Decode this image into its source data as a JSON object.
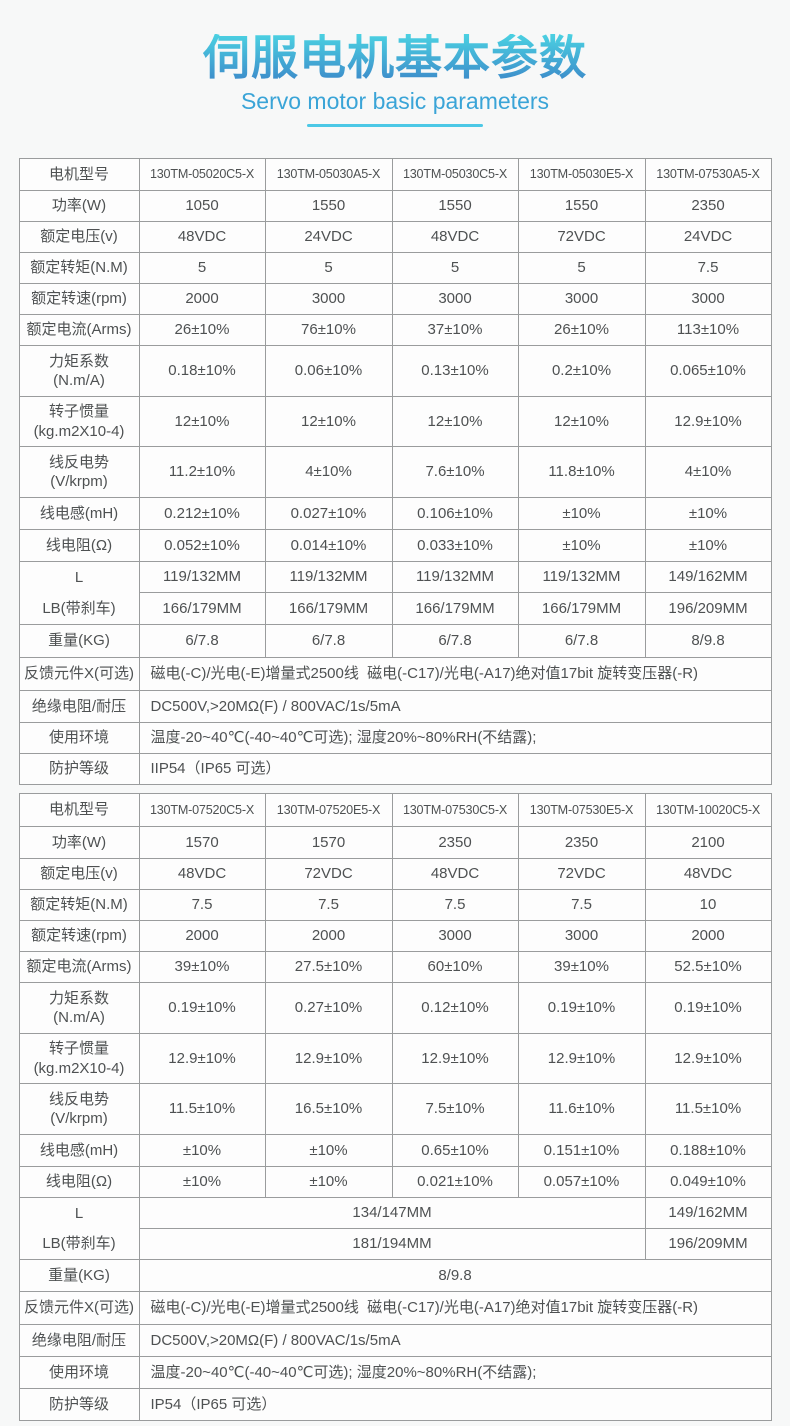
{
  "header": {
    "title": "伺服电机基本参数",
    "subtitle": "Servo motor basic parameters"
  },
  "colors": {
    "title_gradient_top": "#4bd1e2",
    "title_gradient_bottom": "#3d8cca",
    "subtitle_text": "#3aa4d7",
    "underline_accent": "#4cc8e6",
    "table_border": "#9a9c9d",
    "cell_text": "#4e5152",
    "page_background": "#f7f8f8"
  },
  "tables": [
    {
      "rows": [
        {
          "h": 32,
          "cells": [
            {
              "text": "电机型号",
              "label": true
            },
            {
              "text": "130TM-05020C5-X",
              "model": true
            },
            {
              "text": "130TM-05030A5-X",
              "model": true
            },
            {
              "text": "130TM-05030C5-X",
              "model": true
            },
            {
              "text": "130TM-05030E5-X",
              "model": true
            },
            {
              "text": "130TM-07530A5-X",
              "model": true
            }
          ]
        },
        {
          "h": 31,
          "cells": [
            {
              "text": "功率(W)",
              "label": true
            },
            {
              "text": "1050"
            },
            {
              "text": "1550"
            },
            {
              "text": "1550"
            },
            {
              "text": "1550"
            },
            {
              "text": "2350"
            }
          ]
        },
        {
          "h": 31,
          "cells": [
            {
              "text": "额定电压(v)",
              "label": true
            },
            {
              "text": "48VDC"
            },
            {
              "text": "24VDC"
            },
            {
              "text": "48VDC"
            },
            {
              "text": "72VDC"
            },
            {
              "text": "24VDC"
            }
          ]
        },
        {
          "h": 31,
          "cells": [
            {
              "text": "额定转矩(N.M)",
              "label": true
            },
            {
              "text": "5"
            },
            {
              "text": "5"
            },
            {
              "text": "5"
            },
            {
              "text": "5"
            },
            {
              "text": "7.5"
            }
          ]
        },
        {
          "h": 31,
          "cells": [
            {
              "text": "额定转速(rpm)",
              "label": true
            },
            {
              "text": "2000"
            },
            {
              "text": "3000"
            },
            {
              "text": "3000"
            },
            {
              "text": "3000"
            },
            {
              "text": "3000"
            }
          ]
        },
        {
          "h": 31,
          "cells": [
            {
              "text": "额定电流(Arms)",
              "label": true
            },
            {
              "text": "26±10%"
            },
            {
              "text": "76±10%"
            },
            {
              "text": "37±10%"
            },
            {
              "text": "26±10%"
            },
            {
              "text": "113±10%"
            }
          ]
        },
        {
          "h": 51,
          "cells": [
            {
              "lines": [
                "力矩系数",
                "(N.m/A)"
              ],
              "label": true
            },
            {
              "text": "0.18±10%"
            },
            {
              "text": "0.06±10%"
            },
            {
              "text": "0.13±10%"
            },
            {
              "text": "0.2±10%"
            },
            {
              "text": "0.065±10%"
            }
          ]
        },
        {
          "h": 50,
          "cells": [
            {
              "lines": [
                "转子惯量",
                "(kg.m2X10-4)"
              ],
              "label": true
            },
            {
              "text": "12±10%"
            },
            {
              "text": "12±10%"
            },
            {
              "text": "12±10%"
            },
            {
              "text": "12±10%"
            },
            {
              "text": "12.9±10%"
            }
          ]
        },
        {
          "h": 51,
          "cells": [
            {
              "lines": [
                "线反电势",
                "(V/krpm)"
              ],
              "label": true
            },
            {
              "text": "11.2±10%"
            },
            {
              "text": "4±10%"
            },
            {
              "text": "7.6±10%"
            },
            {
              "text": "11.8±10%"
            },
            {
              "text": "4±10%"
            }
          ]
        },
        {
          "h": 32,
          "cells": [
            {
              "text": "线电感(mH)",
              "label": true
            },
            {
              "text": "0.212±10%"
            },
            {
              "text": "0.027±10%"
            },
            {
              "text": "0.106±10%"
            },
            {
              "text": "±10%"
            },
            {
              "text": "±10%"
            }
          ]
        },
        {
          "h": 32,
          "cells": [
            {
              "text": "线电阻(Ω)",
              "label": true
            },
            {
              "text": "0.052±10%"
            },
            {
              "text": "0.014±10%"
            },
            {
              "text": "0.033±10%"
            },
            {
              "text": "±10%"
            },
            {
              "text": "±10%"
            }
          ]
        },
        {
          "h": 31,
          "cells": [
            {
              "stack": true,
              "label": true,
              "rowspan": 2,
              "lines": [
                "L",
                "LB(带刹车)"
              ]
            },
            {
              "text": "119/132MM"
            },
            {
              "text": "119/132MM"
            },
            {
              "text": "119/132MM"
            },
            {
              "text": "119/132MM"
            },
            {
              "text": "149/162MM"
            }
          ]
        },
        {
          "h": 32,
          "cells": [
            {
              "text": "166/179MM"
            },
            {
              "text": "166/179MM"
            },
            {
              "text": "166/179MM"
            },
            {
              "text": "166/179MM"
            },
            {
              "text": "196/209MM"
            }
          ]
        },
        {
          "h": 33,
          "cells": [
            {
              "text": "重量(KG)",
              "label": true
            },
            {
              "text": "6/7.8"
            },
            {
              "text": "6/7.8"
            },
            {
              "text": "6/7.8"
            },
            {
              "text": "6/7.8"
            },
            {
              "text": "8/9.8"
            }
          ]
        },
        {
          "h": 33,
          "cells": [
            {
              "text": "反馈元件X(可选)",
              "label": true
            },
            {
              "text": "磁电(-C)/光电(-E)增量式2500线  磁电(-C17)/光电(-A17)绝对值17bit 旋转变压器(-R)",
              "colspan": 5,
              "left": true
            }
          ]
        },
        {
          "h": 32,
          "cells": [
            {
              "text": "绝缘电阻/耐压",
              "label": true
            },
            {
              "text": "DC500V,>20MΩ(F) / 800VAC/1s/5mA",
              "colspan": 5,
              "left": true
            }
          ]
        },
        {
          "h": 31,
          "cells": [
            {
              "text": "使用环境",
              "label": true
            },
            {
              "text": "温度-20~40℃(-40~40℃可选); 湿度20%~80%RH(不结露);",
              "colspan": 5,
              "left": true
            }
          ]
        },
        {
          "h": 31,
          "cells": [
            {
              "text": "防护等级",
              "label": true
            },
            {
              "text": "IIP54（IP65 可选）",
              "colspan": 5,
              "left": true
            }
          ]
        }
      ]
    },
    {
      "rows": [
        {
          "h": 33,
          "cells": [
            {
              "text": "电机型号",
              "label": true
            },
            {
              "text": "130TM-07520C5-X",
              "model": true
            },
            {
              "text": "130TM-07520E5-X",
              "model": true
            },
            {
              "text": "130TM-07530C5-X",
              "model": true
            },
            {
              "text": "130TM-07530E5-X",
              "model": true
            },
            {
              "text": "130TM-10020C5-X",
              "model": true
            }
          ]
        },
        {
          "h": 32,
          "cells": [
            {
              "text": "功率(W)",
              "label": true
            },
            {
              "text": "1570"
            },
            {
              "text": "1570"
            },
            {
              "text": "2350"
            },
            {
              "text": "2350"
            },
            {
              "text": "2100"
            }
          ]
        },
        {
          "h": 31,
          "cells": [
            {
              "text": "额定电压(v)",
              "label": true
            },
            {
              "text": "48VDC"
            },
            {
              "text": "72VDC"
            },
            {
              "text": "48VDC"
            },
            {
              "text": "72VDC"
            },
            {
              "text": "48VDC"
            }
          ]
        },
        {
          "h": 31,
          "cells": [
            {
              "text": "额定转矩(N.M)",
              "label": true
            },
            {
              "text": "7.5"
            },
            {
              "text": "7.5"
            },
            {
              "text": "7.5"
            },
            {
              "text": "7.5"
            },
            {
              "text": "10"
            }
          ]
        },
        {
          "h": 31,
          "cells": [
            {
              "text": "额定转速(rpm)",
              "label": true
            },
            {
              "text": "2000"
            },
            {
              "text": "2000"
            },
            {
              "text": "3000"
            },
            {
              "text": "3000"
            },
            {
              "text": "2000"
            }
          ]
        },
        {
          "h": 31,
          "cells": [
            {
              "text": "额定电流(Arms)",
              "label": true
            },
            {
              "text": "39±10%"
            },
            {
              "text": "27.5±10%"
            },
            {
              "text": "60±10%"
            },
            {
              "text": "39±10%"
            },
            {
              "text": "52.5±10%"
            }
          ]
        },
        {
          "h": 51,
          "cells": [
            {
              "lines": [
                "力矩系数",
                "(N.m/A)"
              ],
              "label": true
            },
            {
              "text": "0.19±10%"
            },
            {
              "text": "0.27±10%"
            },
            {
              "text": "0.12±10%"
            },
            {
              "text": "0.19±10%"
            },
            {
              "text": "0.19±10%"
            }
          ]
        },
        {
          "h": 50,
          "cells": [
            {
              "lines": [
                "转子惯量",
                "(kg.m2X10-4)"
              ],
              "label": true
            },
            {
              "text": "12.9±10%"
            },
            {
              "text": "12.9±10%"
            },
            {
              "text": "12.9±10%"
            },
            {
              "text": "12.9±10%"
            },
            {
              "text": "12.9±10%"
            }
          ]
        },
        {
          "h": 51,
          "cells": [
            {
              "lines": [
                "线反电势",
                "(V/krpm)"
              ],
              "label": true
            },
            {
              "text": "11.5±10%"
            },
            {
              "text": "16.5±10%"
            },
            {
              "text": "7.5±10%"
            },
            {
              "text": "11.6±10%"
            },
            {
              "text": "11.5±10%"
            }
          ]
        },
        {
          "h": 32,
          "cells": [
            {
              "text": "线电感(mH)",
              "label": true
            },
            {
              "text": "±10%"
            },
            {
              "text": "±10%"
            },
            {
              "text": "0.65±10%"
            },
            {
              "text": "0.151±10%"
            },
            {
              "text": "0.188±10%"
            }
          ]
        },
        {
          "h": 31,
          "cells": [
            {
              "text": "线电阻(Ω)",
              "label": true
            },
            {
              "text": "±10%"
            },
            {
              "text": "±10%"
            },
            {
              "text": "0.021±10%"
            },
            {
              "text": "0.057±10%"
            },
            {
              "text": "0.049±10%"
            }
          ]
        },
        {
          "h": 31,
          "cells": [
            {
              "stack": true,
              "label": true,
              "rowspan": 2,
              "lines": [
                "L",
                "LB(带刹车)"
              ]
            },
            {
              "text": "134/147MM",
              "colspan": 4
            },
            {
              "text": "149/162MM"
            }
          ]
        },
        {
          "h": 31,
          "cells": [
            {
              "text": "181/194MM",
              "colspan": 4
            },
            {
              "text": "196/209MM"
            }
          ]
        },
        {
          "h": 32,
          "cells": [
            {
              "text": "重量(KG)",
              "label": true
            },
            {
              "text": "8/9.8",
              "colspan": 5
            }
          ]
        },
        {
          "h": 33,
          "cells": [
            {
              "text": "反馈元件X(可选)",
              "label": true
            },
            {
              "text": "磁电(-C)/光电(-E)增量式2500线  磁电(-C17)/光电(-A17)绝对值17bit 旋转变压器(-R)",
              "colspan": 5,
              "left": true
            }
          ]
        },
        {
          "h": 32,
          "cells": [
            {
              "text": "绝缘电阻/耐压",
              "label": true
            },
            {
              "text": "DC500V,>20MΩ(F) / 800VAC/1s/5mA",
              "colspan": 5,
              "left": true
            }
          ]
        },
        {
          "h": 32,
          "cells": [
            {
              "text": "使用环境",
              "label": true
            },
            {
              "text": "温度-20~40℃(-40~40℃可选); 湿度20%~80%RH(不结露);",
              "colspan": 5,
              "left": true
            }
          ]
        },
        {
          "h": 32,
          "cells": [
            {
              "text": "防护等级",
              "label": true
            },
            {
              "text": "IP54（IP65 可选）",
              "colspan": 5,
              "left": true
            }
          ]
        }
      ]
    }
  ]
}
